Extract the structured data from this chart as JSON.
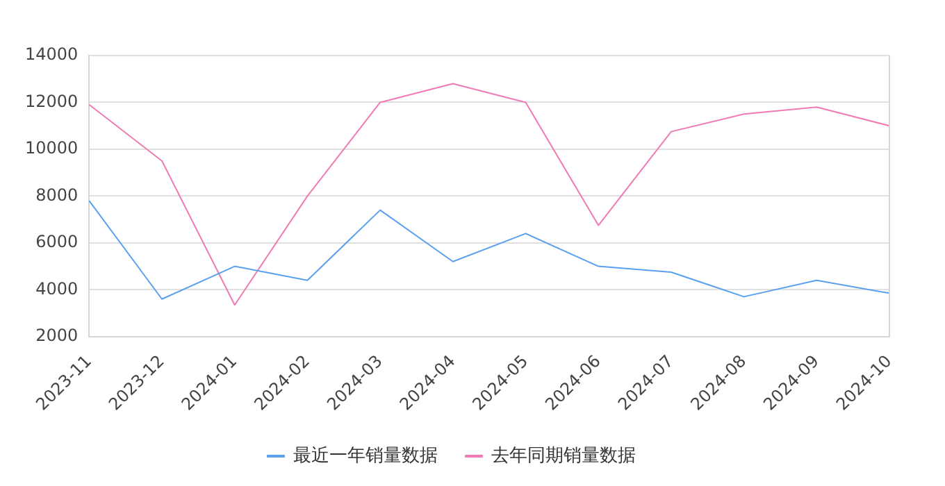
{
  "chart_data": {
    "type": "line",
    "categories": [
      "2023-11",
      "2023-12",
      "2024-01",
      "2024-02",
      "2024-03",
      "2024-04",
      "2024-05",
      "2024-06",
      "2024-07",
      "2024-08",
      "2024-09",
      "2024-10"
    ],
    "series": [
      {
        "name": "最近一年销量数据",
        "color": "#5aa0f0",
        "values": [
          7800,
          3600,
          5000,
          4400,
          7400,
          5200,
          6400,
          5000,
          4750,
          3700,
          4400,
          3850
        ]
      },
      {
        "name": "去年同期销量数据",
        "color": "#f07ab4",
        "values": [
          11900,
          9500,
          3350,
          8000,
          12000,
          12800,
          12000,
          6750,
          10750,
          11500,
          11800,
          11000
        ]
      }
    ],
    "ylim": [
      2000,
      14000
    ],
    "yticks": [
      2000,
      4000,
      6000,
      8000,
      10000,
      12000,
      14000
    ],
    "grid": "y",
    "legend": "bottom",
    "marker": "none",
    "line_style": "solid"
  }
}
